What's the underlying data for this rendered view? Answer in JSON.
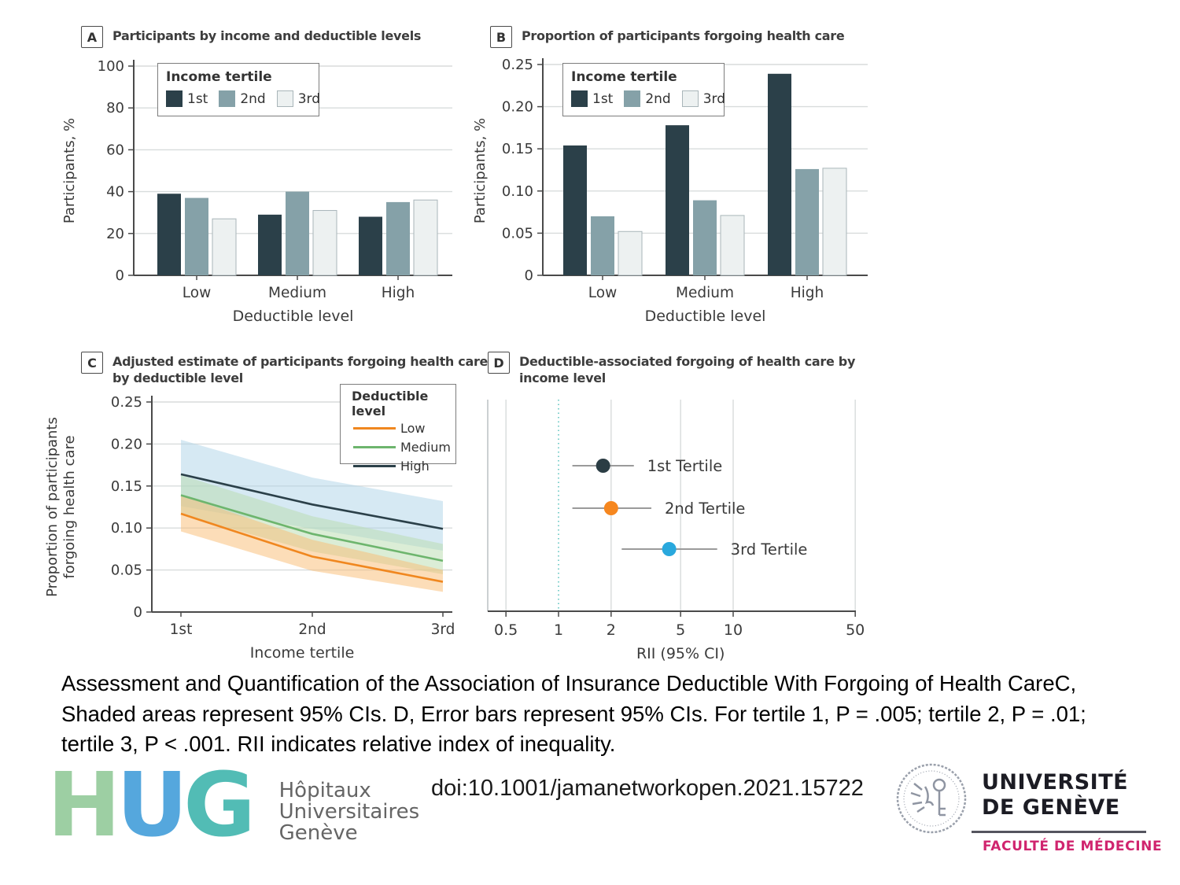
{
  "panels": {
    "a": {
      "label": "A",
      "title_line1": "Participants by income and deductible levels"
    },
    "b": {
      "label": "B",
      "title_line1": "Proportion of participants forgoing health care"
    },
    "c": {
      "label": "C",
      "title_line1": "Adjusted estimate of participants forgoing health care",
      "title_line2": "by deductible level"
    },
    "d": {
      "label": "D",
      "title_line1": "Deductible-associated forgoing of health care by",
      "title_line2": "income level"
    }
  },
  "chart_data": [
    {
      "id": "A",
      "type": "bar",
      "title": "Participants by income and deductible levels",
      "categories": [
        "Low",
        "Medium",
        "High"
      ],
      "legend_title": "Income tertile",
      "legend_position": "top-left-inside",
      "series": [
        {
          "name": "1st",
          "color": "#2b4049",
          "values": [
            39,
            29,
            28
          ]
        },
        {
          "name": "2nd",
          "color": "#85a1a8",
          "values": [
            37,
            40,
            35
          ]
        },
        {
          "name": "3rd",
          "color": "#edf1f1",
          "values": [
            27,
            31,
            36
          ]
        }
      ],
      "xlabel": "Deductible level",
      "ylabel": "Participants, %",
      "ylim": [
        0,
        100
      ],
      "yticks": [
        0,
        20,
        40,
        60,
        80,
        100
      ],
      "grid": true
    },
    {
      "id": "B",
      "type": "bar",
      "title": "Proportion of participants forgoing health care",
      "categories": [
        "Low",
        "Medium",
        "High"
      ],
      "legend_title": "Income tertile",
      "legend_position": "top-left-inside",
      "series": [
        {
          "name": "1st",
          "color": "#2b4049",
          "values": [
            0.154,
            0.178,
            0.239
          ]
        },
        {
          "name": "2nd",
          "color": "#85a1a8",
          "values": [
            0.07,
            0.089,
            0.126
          ]
        },
        {
          "name": "3rd",
          "color": "#edf1f1",
          "values": [
            0.052,
            0.071,
            0.127
          ]
        }
      ],
      "xlabel": "Deductible level",
      "ylabel": "Participants, %",
      "ylim": [
        0,
        0.25
      ],
      "yticks": [
        0,
        0.05,
        0.1,
        0.15,
        0.2,
        0.25
      ],
      "grid": true
    },
    {
      "id": "C",
      "type": "line",
      "title": "Adjusted estimate of participants forgoing health care by deductible level",
      "categories": [
        "1st",
        "2nd",
        "3rd"
      ],
      "legend_title": "Deductible level",
      "legend_position": "top-right-inside",
      "series": [
        {
          "name": "Low",
          "color": "#f0871f",
          "band_color": "#f9bc71",
          "values": [
            0.117,
            0.066,
            0.036
          ],
          "ci_low": [
            0.096,
            0.049,
            0.024
          ],
          "ci_high": [
            0.139,
            0.086,
            0.05
          ]
        },
        {
          "name": "Medium",
          "color": "#6db56d",
          "band_color": "#b7dcae",
          "values": [
            0.139,
            0.093,
            0.061
          ],
          "ci_low": [
            0.116,
            0.072,
            0.045
          ],
          "ci_high": [
            0.163,
            0.114,
            0.081
          ]
        },
        {
          "name": "High",
          "color": "#2b4049",
          "band_color": "#aed4e8",
          "values": [
            0.164,
            0.128,
            0.099
          ],
          "ci_low": [
            0.126,
            0.099,
            0.073
          ],
          "ci_high": [
            0.205,
            0.16,
            0.132
          ]
        }
      ],
      "xlabel": "Income tertile",
      "ylabel": "Proportion of participants forgoing health care",
      "ylim": [
        0,
        0.25
      ],
      "yticks": [
        0,
        0.05,
        0.1,
        0.15,
        0.2,
        0.25
      ],
      "grid": true
    },
    {
      "id": "D",
      "type": "scatter",
      "title": "Deductible-associated forgoing of health care by income level",
      "xlabel": "RII (95% CI)",
      "xscale": "log",
      "xticks": [
        0.5,
        1,
        2,
        5,
        10,
        50
      ],
      "reference_line": 1,
      "points": [
        {
          "label": "1st Tertile",
          "color": "#2b3d44",
          "value": 1.8,
          "ci_low": 1.2,
          "ci_high": 2.7
        },
        {
          "label": "2nd Tertile",
          "color": "#f6871f",
          "value": 2.0,
          "ci_low": 1.2,
          "ci_high": 3.4
        },
        {
          "label": "3rd Tertile",
          "color": "#29a8dd",
          "value": 4.3,
          "ci_low": 2.3,
          "ci_high": 8.1
        }
      ]
    }
  ],
  "caption": {
    "line1": "Assessment and Quantification of the Association of Insurance Deductible With Forgoing of Health CareC,",
    "line2": "Shaded areas represent 95% CIs. D, Error bars represent 95% CIs. For tertile 1, P = .005; tertile 2, P = .01;",
    "line3": "tertile 3, P < .001. RII indicates relative index of inequality."
  },
  "doi": "doi:10.1001/jamanetworkopen.2021.15722",
  "logos": {
    "hug": {
      "letters": [
        "H",
        "U",
        "G"
      ],
      "letter_colors": [
        "#8fc996",
        "#3d9bd9",
        "#3ab3ab"
      ],
      "name_line1": "Hôpitaux",
      "name_line2": "Universitaires",
      "name_line3": "Genève"
    },
    "unige": {
      "line1": "UNIVERSITÉ",
      "line2": "DE GENÈVE",
      "subtitle": "FACULTÉ DE MÉDECINE",
      "subtitle_color": "#d0246e"
    }
  },
  "colors": {
    "axis": "#4a4a4a",
    "grid": "#d8dcdc",
    "text": "#3a3a3a",
    "light_bar_border": "#a9b5b9",
    "error_bar": "#9a9a9a",
    "reference_line": "#7fd0cc",
    "frame_light": "#bcc1c3"
  }
}
